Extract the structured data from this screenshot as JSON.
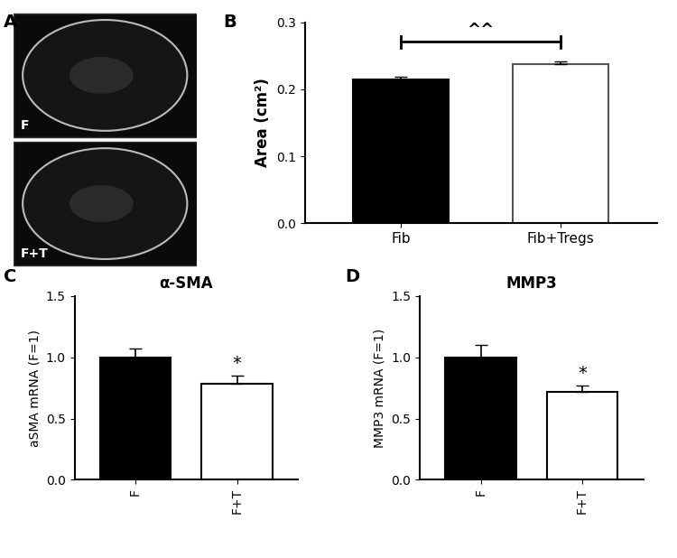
{
  "images": {
    "panel": "A",
    "labels": [
      "F",
      "F+T"
    ]
  },
  "chart_data": [
    {
      "type": "bar",
      "panel": "B",
      "categories": [
        "Fib",
        "Fib+Tregs"
      ],
      "values": [
        0.215,
        0.238
      ],
      "errors": [
        0.004,
        0.003
      ],
      "colors": [
        "#000000",
        "#ffffff"
      ],
      "y_label": "Area (cm²)",
      "ylim": [
        0,
        0.3
      ],
      "yticks": [
        0.0,
        0.1,
        0.2,
        0.3
      ],
      "annotations": [
        {
          "text": "^^",
          "between": [
            "Fib",
            "Fib+Tregs"
          ]
        }
      ]
    },
    {
      "type": "bar",
      "panel": "C",
      "title": "α-SMA",
      "categories": [
        "F",
        "F+T"
      ],
      "values": [
        1.0,
        0.78
      ],
      "errors": [
        0.07,
        0.07
      ],
      "colors": [
        "#000000",
        "#ffffff"
      ],
      "y_label": "aSMA mRNA (F=1)",
      "ylim": [
        0,
        1.5
      ],
      "yticks": [
        0.0,
        0.5,
        1.0,
        1.5
      ],
      "annotations": [
        {
          "text": "*",
          "category": "F+T"
        }
      ]
    },
    {
      "type": "bar",
      "panel": "D",
      "title": "MMP3",
      "categories": [
        "F",
        "F+T"
      ],
      "values": [
        1.0,
        0.72
      ],
      "errors": [
        0.1,
        0.05
      ],
      "colors": [
        "#000000",
        "#ffffff"
      ],
      "y_label": "MMP3 mRNA (F=1)",
      "ylim": [
        0,
        1.5
      ],
      "yticks": [
        0.0,
        0.5,
        1.0,
        1.5
      ],
      "annotations": [
        {
          "text": "*",
          "category": "F+T"
        }
      ]
    }
  ]
}
